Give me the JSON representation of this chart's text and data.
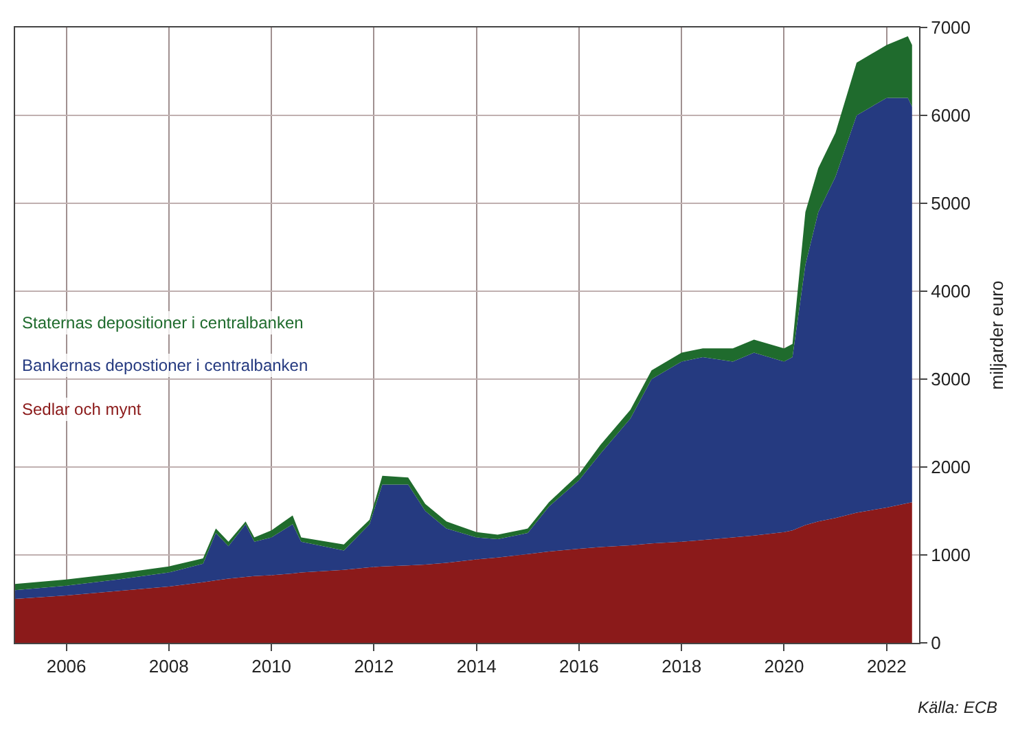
{
  "chart_data": {
    "type": "area",
    "stacked": true,
    "ylabel": "miljarder euro",
    "x": [
      "2005-01",
      "2006-01",
      "2007-01",
      "2008-01",
      "2008-09",
      "2008-12",
      "2009-03",
      "2009-07",
      "2009-09",
      "2010-01",
      "2010-06",
      "2010-08",
      "2011-06",
      "2011-12",
      "2012-03",
      "2012-09",
      "2013-01",
      "2013-06",
      "2014-01",
      "2014-06",
      "2015-01",
      "2015-06",
      "2016-01",
      "2016-06",
      "2017-01",
      "2017-06",
      "2018-01",
      "2018-06",
      "2019-01",
      "2019-06",
      "2020-01",
      "2020-03",
      "2020-06",
      "2020-09",
      "2021-01",
      "2021-06",
      "2022-01",
      "2022-06",
      "2022-07"
    ],
    "series": [
      {
        "name": "Sedlar och mynt",
        "color": "#8b1a1a",
        "values": [
          500,
          540,
          590,
          640,
          690,
          710,
          730,
          750,
          760,
          770,
          790,
          800,
          830,
          860,
          870,
          880,
          890,
          910,
          950,
          970,
          1010,
          1040,
          1070,
          1090,
          1110,
          1130,
          1150,
          1170,
          1200,
          1220,
          1260,
          1280,
          1340,
          1380,
          1420,
          1480,
          1540,
          1590,
          1600
        ]
      },
      {
        "name": "Bankernas depostioner i centralbanken",
        "color": "#253a80",
        "values": [
          100,
          110,
          130,
          160,
          210,
          540,
          370,
          600,
          390,
          430,
          560,
          350,
          220,
          490,
          930,
          920,
          610,
          390,
          250,
          210,
          240,
          510,
          780,
          1060,
          1440,
          1870,
          2050,
          2080,
          2000,
          2080,
          1940,
          1970,
          2960,
          3520,
          3880,
          4520,
          4660,
          4610,
          4500
        ]
      },
      {
        "name": "Staternas depositioner i centralbanken",
        "color": "#1f6b2d",
        "values": [
          70,
          70,
          70,
          70,
          60,
          50,
          50,
          30,
          50,
          80,
          100,
          50,
          70,
          50,
          100,
          80,
          80,
          80,
          60,
          50,
          50,
          50,
          70,
          100,
          100,
          100,
          100,
          100,
          150,
          150,
          150,
          150,
          600,
          500,
          500,
          600,
          600,
          700,
          700
        ]
      }
    ],
    "xlim": [
      "2005-01-01",
      "2022-08-20"
    ],
    "xticks": [
      {
        "value": "2006",
        "label": "2006"
      },
      {
        "value": "2008",
        "label": "2008"
      },
      {
        "value": "2010",
        "label": "2010"
      },
      {
        "value": "2012",
        "label": "2012"
      },
      {
        "value": "2014",
        "label": "2014"
      },
      {
        "value": "2016",
        "label": "2016"
      },
      {
        "value": "2018",
        "label": "2018"
      },
      {
        "value": "2020",
        "label": "2020"
      },
      {
        "value": "2022",
        "label": "2022"
      }
    ],
    "ylim": [
      0,
      7000
    ],
    "yticks": [
      0,
      1000,
      2000,
      3000,
      4000,
      5000,
      6000,
      7000
    ],
    "grid": true,
    "annotations": [
      "Källa: ECB"
    ]
  }
}
